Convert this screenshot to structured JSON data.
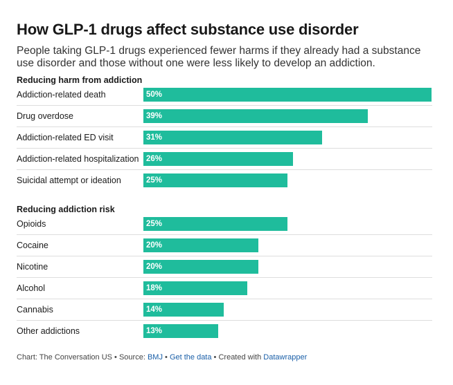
{
  "colors": {
    "bar": "#1fbc9c",
    "link": "#1a5fa8"
  },
  "chart_data": {
    "type": "bar",
    "orientation": "horizontal",
    "title": "How GLP-1 drugs affect substance use disorder",
    "subtitle": "People taking GLP-1 drugs experienced fewer harms if they already had a substance use disorder and those without one were less likely to develop an addiction.",
    "xlim": [
      0,
      50
    ],
    "unit": "%",
    "groups": [
      {
        "name": "Reducing harm from addiction",
        "categories": [
          "Addiction-related death",
          "Drug overdose",
          "Addiction-related ED visit",
          "Addiction-related hospitalization",
          "Suicidal attempt or ideation"
        ],
        "values": [
          50,
          39,
          31,
          26,
          25
        ],
        "value_labels": [
          "50%",
          "39%",
          "31%",
          "26%",
          "25%"
        ]
      },
      {
        "name": "Reducing addiction risk",
        "categories": [
          "Opioids",
          "Cocaine",
          "Nicotine",
          "Alcohol",
          "Cannabis",
          "Other addictions"
        ],
        "values": [
          25,
          20,
          20,
          18,
          14,
          13
        ],
        "value_labels": [
          "25%",
          "20%",
          "20%",
          "18%",
          "14%",
          "13%"
        ]
      }
    ]
  },
  "footer": {
    "chart_prefix": "Chart: The Conversation US",
    "source_prefix": "Source:",
    "source_link": "BMJ",
    "get_data": "Get the data",
    "created_prefix": "Created with",
    "tool": "Datawrapper",
    "separator": "•"
  }
}
